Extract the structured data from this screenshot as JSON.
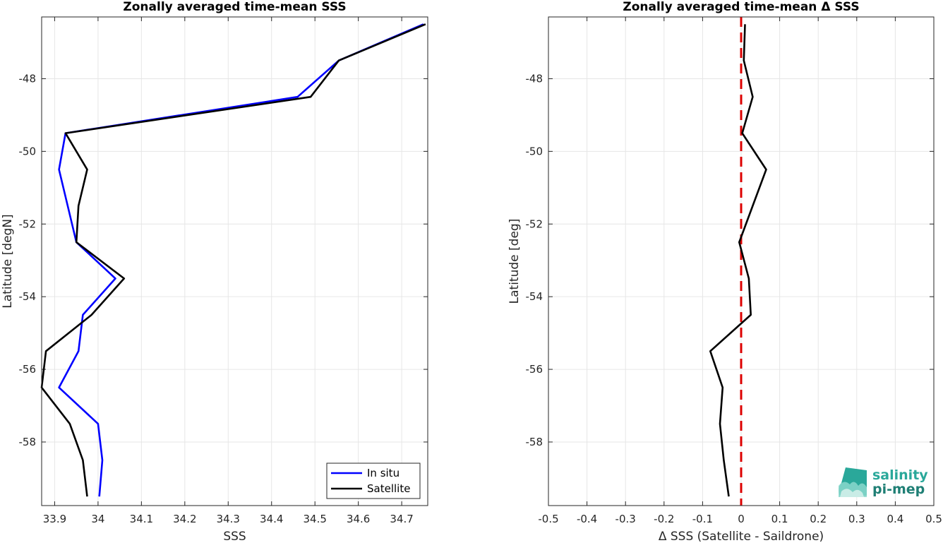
{
  "chart_data": [
    {
      "type": "line",
      "title": "Zonally averaged time-mean SSS",
      "xlabel": "SSS",
      "ylabel": "Latitude [degN]",
      "xlim": [
        33.87,
        34.76
      ],
      "ylim": [
        -59.75,
        -46.3
      ],
      "xticks": [
        33.9,
        34,
        34.1,
        34.2,
        34.3,
        34.4,
        34.5,
        34.6,
        34.7
      ],
      "xtick_labels": [
        "33.9",
        "34",
        "34.1",
        "34.2",
        "34.3",
        "34.4",
        "34.5",
        "34.6",
        "34.7"
      ],
      "yticks": [
        -58,
        -56,
        -54,
        -52,
        -50,
        -48
      ],
      "ytick_labels": [
        "-58",
        "-56",
        "-54",
        "-52",
        "-50",
        "-48"
      ],
      "grid": true,
      "legend_position": "bottom-right",
      "series": [
        {
          "name": "In situ",
          "color": "#0000ff",
          "points": [
            [
              34.75,
              -46.5
            ],
            [
              34.555,
              -47.5
            ],
            [
              34.46,
              -48.5
            ],
            [
              33.925,
              -49.5
            ],
            [
              33.91,
              -50.5
            ],
            [
              33.93,
              -51.5
            ],
            [
              33.95,
              -52.5
            ],
            [
              34.04,
              -53.5
            ],
            [
              33.965,
              -54.5
            ],
            [
              33.955,
              -55.5
            ],
            [
              33.91,
              -56.5
            ],
            [
              34.0,
              -57.5
            ],
            [
              34.01,
              -58.5
            ],
            [
              34.003,
              -59.5
            ]
          ]
        },
        {
          "name": "Satellite",
          "color": "#000000",
          "points": [
            [
              34.755,
              -46.5
            ],
            [
              34.555,
              -47.5
            ],
            [
              34.49,
              -48.5
            ],
            [
              33.925,
              -49.5
            ],
            [
              33.975,
              -50.5
            ],
            [
              33.955,
              -51.5
            ],
            [
              33.95,
              -52.5
            ],
            [
              34.06,
              -53.5
            ],
            [
              33.985,
              -54.5
            ],
            [
              33.88,
              -55.5
            ],
            [
              33.87,
              -56.5
            ],
            [
              33.935,
              -57.5
            ],
            [
              33.965,
              -58.5
            ],
            [
              33.975,
              -59.5
            ]
          ]
        }
      ]
    },
    {
      "type": "line",
      "title": "Zonally averaged time-mean Δ SSS",
      "xlabel": "Δ SSS (Satellite - Saildrone)",
      "ylabel": "Latitude [deg]",
      "xlim": [
        -0.5,
        0.5
      ],
      "ylim": [
        -59.75,
        -46.3
      ],
      "xticks": [
        -0.5,
        -0.4,
        -0.3,
        -0.2,
        -0.1,
        0,
        0.1,
        0.2,
        0.3,
        0.4,
        0.5
      ],
      "xtick_labels": [
        "-0.5",
        "-0.4",
        "-0.3",
        "-0.2",
        "-0.1",
        "0",
        "0.1",
        "0.2",
        "0.3",
        "0.4",
        "0.5"
      ],
      "yticks": [
        -58,
        -56,
        -54,
        -52,
        -50,
        -48
      ],
      "ytick_labels": [
        "-58",
        "-56",
        "-54",
        "-52",
        "-50",
        "-48"
      ],
      "grid": true,
      "reference_line": {
        "x": 0,
        "color": "#dd0000",
        "style": "dashed"
      },
      "series": [
        {
          "color": "#000000",
          "points": [
            [
              0.01,
              -46.5
            ],
            [
              0.007,
              -47.5
            ],
            [
              0.03,
              -48.5
            ],
            [
              0.003,
              -49.5
            ],
            [
              0.065,
              -50.5
            ],
            [
              0.03,
              -51.5
            ],
            [
              -0.005,
              -52.5
            ],
            [
              0.02,
              -53.5
            ],
            [
              0.025,
              -54.5
            ],
            [
              -0.08,
              -55.5
            ],
            [
              -0.048,
              -56.5
            ],
            [
              -0.055,
              -57.5
            ],
            [
              -0.045,
              -58.5
            ],
            [
              -0.032,
              -59.5
            ]
          ]
        }
      ]
    }
  ],
  "logo": {
    "line1": "salinity",
    "line2": "pi-mep",
    "colors": [
      "#2aa89a",
      "#1f7f75",
      "#8ad8cc"
    ]
  }
}
